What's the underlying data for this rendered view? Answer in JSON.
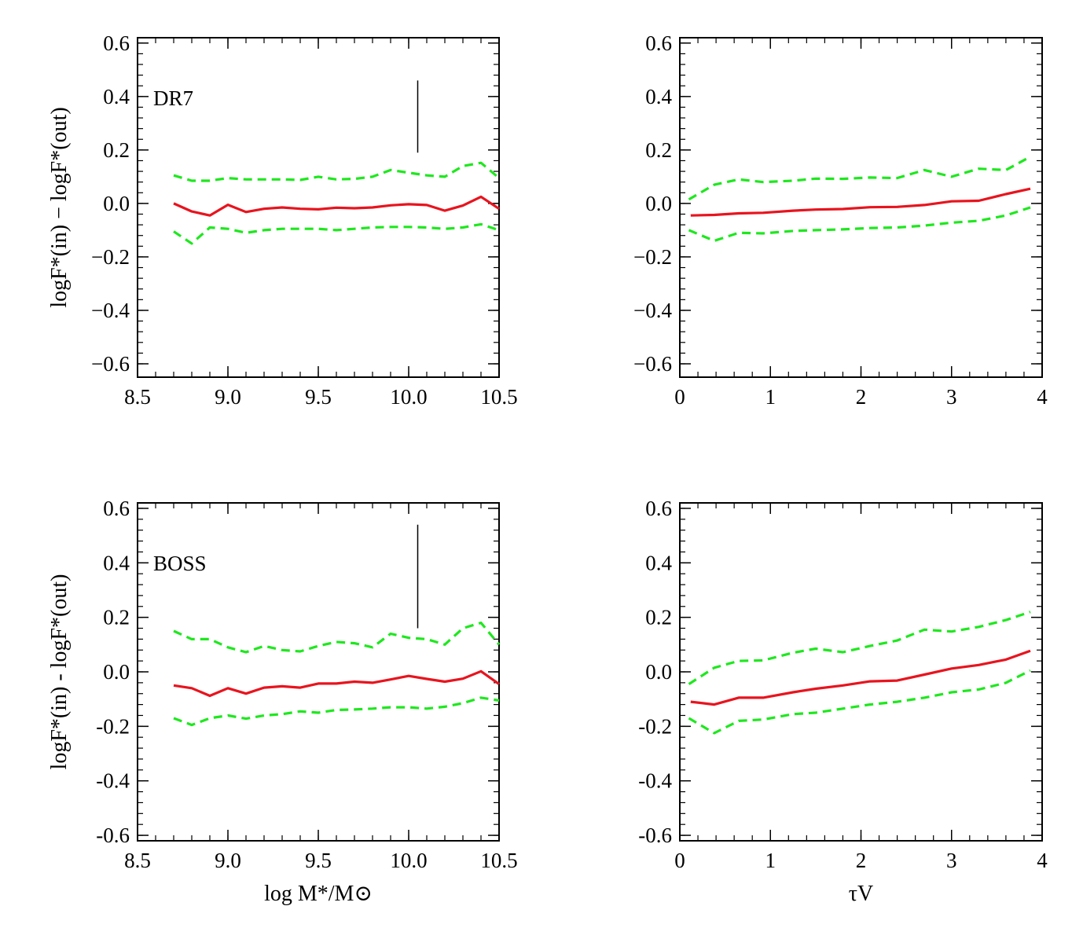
{
  "chart_data": [
    {
      "type": "line",
      "panel_label": "DR7",
      "xlabel": "",
      "ylabel": "logF*(in) − logF*(out)",
      "xlim": [
        8.5,
        10.5
      ],
      "ylim": [
        -0.65,
        0.62
      ],
      "xticks": [
        8.5,
        9.0,
        9.5,
        10.0,
        10.5
      ],
      "xtick_labels": [
        "8.5",
        "9.0",
        "9.5",
        "10.0",
        "10.5"
      ],
      "yticks": [
        -0.6,
        -0.4,
        -0.2,
        0.0,
        0.2,
        0.4,
        0.6
      ],
      "ytick_labels": [
        "−0.6",
        "−0.4",
        "−0.2",
        "0.0",
        "0.2",
        "0.4",
        "0.6"
      ],
      "vline": {
        "x": 10.05,
        "y": [
          0.19,
          0.46
        ]
      },
      "series": [
        {
          "style": "solid",
          "color": "#e8141e",
          "x": [
            8.7,
            8.8,
            8.9,
            9.0,
            9.1,
            9.2,
            9.3,
            9.4,
            9.5,
            9.6,
            9.7,
            9.8,
            9.9,
            10.0,
            10.1,
            10.2,
            10.3,
            10.4,
            10.5
          ],
          "y": [
            0.0,
            -0.03,
            -0.045,
            -0.005,
            -0.032,
            -0.02,
            -0.015,
            -0.02,
            -0.022,
            -0.016,
            -0.018,
            -0.015,
            -0.007,
            -0.003,
            -0.006,
            -0.027,
            -0.008,
            0.025,
            -0.02
          ]
        },
        {
          "style": "dashed",
          "color": "#1ee81e",
          "x": [
            8.7,
            8.8,
            8.9,
            9.0,
            9.1,
            9.2,
            9.3,
            9.4,
            9.5,
            9.6,
            9.7,
            9.8,
            9.9,
            10.0,
            10.1,
            10.2,
            10.3,
            10.4,
            10.5
          ],
          "y": [
            0.105,
            0.085,
            0.085,
            0.095,
            0.09,
            0.09,
            0.09,
            0.088,
            0.1,
            0.09,
            0.092,
            0.1,
            0.125,
            0.115,
            0.105,
            0.1,
            0.14,
            0.152,
            0.095
          ]
        },
        {
          "style": "dashed",
          "color": "#1ee81e",
          "x": [
            8.7,
            8.8,
            8.9,
            9.0,
            9.1,
            9.2,
            9.3,
            9.4,
            9.5,
            9.6,
            9.7,
            9.8,
            9.9,
            10.0,
            10.1,
            10.2,
            10.3,
            10.4,
            10.5
          ],
          "y": [
            -0.105,
            -0.15,
            -0.09,
            -0.095,
            -0.11,
            -0.1,
            -0.095,
            -0.095,
            -0.095,
            -0.1,
            -0.095,
            -0.09,
            -0.088,
            -0.088,
            -0.09,
            -0.095,
            -0.09,
            -0.078,
            -0.1
          ]
        }
      ]
    },
    {
      "type": "line",
      "panel_label": "",
      "xlabel": "",
      "ylabel": "",
      "xlim": [
        0,
        4
      ],
      "ylim": [
        -0.65,
        0.62
      ],
      "xticks": [
        0,
        1,
        2,
        3,
        4
      ],
      "xtick_labels": [
        "0",
        "1",
        "2",
        "3",
        "4"
      ],
      "yticks": [
        -0.6,
        -0.4,
        -0.2,
        0.0,
        0.2,
        0.4,
        0.6
      ],
      "ytick_labels": [
        "−0.6",
        "−0.4",
        "−0.2",
        "0.0",
        "0.2",
        "0.4",
        "0.6"
      ],
      "series": [
        {
          "style": "solid",
          "color": "#e8141e",
          "x": [
            0.12,
            0.38,
            0.65,
            0.92,
            1.25,
            1.5,
            1.8,
            2.1,
            2.4,
            2.7,
            3.0,
            3.3,
            3.6,
            3.87
          ],
          "y": [
            -0.045,
            -0.043,
            -0.037,
            -0.035,
            -0.027,
            -0.023,
            -0.021,
            -0.014,
            -0.013,
            -0.006,
            0.008,
            0.01,
            0.035,
            0.055
          ]
        },
        {
          "style": "dashed",
          "color": "#1ee81e",
          "x": [
            0.1,
            0.38,
            0.65,
            0.92,
            1.25,
            1.5,
            1.8,
            2.1,
            2.4,
            2.7,
            3.0,
            3.3,
            3.6,
            3.87
          ],
          "y": [
            0.015,
            0.07,
            0.09,
            0.08,
            0.085,
            0.093,
            0.092,
            0.097,
            0.095,
            0.125,
            0.1,
            0.13,
            0.125,
            0.175
          ]
        },
        {
          "style": "dashed",
          "color": "#1ee81e",
          "x": [
            0.1,
            0.38,
            0.65,
            0.92,
            1.25,
            1.5,
            1.8,
            2.1,
            2.4,
            2.7,
            3.0,
            3.3,
            3.6,
            3.87
          ],
          "y": [
            -0.1,
            -0.14,
            -0.11,
            -0.112,
            -0.103,
            -0.1,
            -0.097,
            -0.092,
            -0.09,
            -0.083,
            -0.072,
            -0.065,
            -0.045,
            -0.015
          ]
        }
      ]
    },
    {
      "type": "line",
      "panel_label": "BOSS",
      "xlabel": "log M*/M⊙",
      "ylabel": "logF*(in) - logF*(out)",
      "xlim": [
        8.5,
        10.5
      ],
      "ylim": [
        -0.62,
        0.62
      ],
      "xticks": [
        8.5,
        9.0,
        9.5,
        10.0,
        10.5
      ],
      "xtick_labels": [
        "8.5",
        "9.0",
        "9.5",
        "10.0",
        "10.5"
      ],
      "yticks": [
        -0.6,
        -0.4,
        -0.2,
        0.0,
        0.2,
        0.4,
        0.6
      ],
      "ytick_labels": [
        "-0.6",
        "-0.4",
        "-0.2",
        "0.0",
        "0.2",
        "0.4",
        "0.6"
      ],
      "vline": {
        "x": 10.05,
        "y": [
          0.16,
          0.54
        ]
      },
      "series": [
        {
          "style": "solid",
          "color": "#e8141e",
          "x": [
            8.7,
            8.8,
            8.9,
            9.0,
            9.1,
            9.2,
            9.3,
            9.4,
            9.5,
            9.6,
            9.7,
            9.8,
            9.9,
            10.0,
            10.1,
            10.2,
            10.3,
            10.4,
            10.5
          ],
          "y": [
            -0.05,
            -0.06,
            -0.088,
            -0.06,
            -0.08,
            -0.058,
            -0.053,
            -0.058,
            -0.043,
            -0.043,
            -0.036,
            -0.04,
            -0.028,
            -0.015,
            -0.026,
            -0.036,
            -0.025,
            0.002,
            -0.045
          ]
        },
        {
          "style": "dashed",
          "color": "#1ee81e",
          "x": [
            8.7,
            8.8,
            8.9,
            9.0,
            9.1,
            9.2,
            9.3,
            9.4,
            9.5,
            9.6,
            9.7,
            9.8,
            9.9,
            10.0,
            10.1,
            10.2,
            10.3,
            10.4,
            10.5
          ],
          "y": [
            0.15,
            0.12,
            0.12,
            0.09,
            0.072,
            0.095,
            0.08,
            0.075,
            0.095,
            0.11,
            0.105,
            0.09,
            0.14,
            0.125,
            0.12,
            0.1,
            0.16,
            0.18,
            0.1
          ]
        },
        {
          "style": "dashed",
          "color": "#1ee81e",
          "x": [
            8.7,
            8.8,
            8.9,
            9.0,
            9.1,
            9.2,
            9.3,
            9.4,
            9.5,
            9.6,
            9.7,
            9.8,
            9.9,
            10.0,
            10.1,
            10.2,
            10.3,
            10.4,
            10.5
          ],
          "y": [
            -0.17,
            -0.195,
            -0.17,
            -0.16,
            -0.172,
            -0.16,
            -0.155,
            -0.145,
            -0.15,
            -0.14,
            -0.138,
            -0.135,
            -0.13,
            -0.13,
            -0.135,
            -0.128,
            -0.115,
            -0.095,
            -0.105
          ]
        }
      ]
    },
    {
      "type": "line",
      "panel_label": "",
      "xlabel": "τV",
      "ylabel": "",
      "xlim": [
        0,
        4
      ],
      "ylim": [
        -0.62,
        0.62
      ],
      "xticks": [
        0,
        1,
        2,
        3,
        4
      ],
      "xtick_labels": [
        "0",
        "1",
        "2",
        "3",
        "4"
      ],
      "yticks": [
        -0.6,
        -0.4,
        -0.2,
        0.0,
        0.2,
        0.4,
        0.6
      ],
      "ytick_labels": [
        "-0.6",
        "-0.4",
        "-0.2",
        "0.0",
        "0.2",
        "0.4",
        "0.6"
      ],
      "series": [
        {
          "style": "solid",
          "color": "#e8141e",
          "x": [
            0.12,
            0.38,
            0.65,
            0.92,
            1.25,
            1.5,
            1.8,
            2.1,
            2.4,
            2.7,
            3.0,
            3.3,
            3.6,
            3.87
          ],
          "y": [
            -0.11,
            -0.12,
            -0.095,
            -0.095,
            -0.075,
            -0.062,
            -0.05,
            -0.035,
            -0.032,
            -0.01,
            0.012,
            0.025,
            0.045,
            0.077
          ]
        },
        {
          "style": "dashed",
          "color": "#1ee81e",
          "x": [
            0.1,
            0.38,
            0.65,
            0.92,
            1.25,
            1.5,
            1.8,
            2.1,
            2.4,
            2.7,
            3.0,
            3.3,
            3.6,
            3.87
          ],
          "y": [
            -0.045,
            0.015,
            0.04,
            0.042,
            0.07,
            0.085,
            0.072,
            0.095,
            0.115,
            0.155,
            0.148,
            0.165,
            0.19,
            0.22
          ]
        },
        {
          "style": "dashed",
          "color": "#1ee81e",
          "x": [
            0.1,
            0.38,
            0.65,
            0.92,
            1.25,
            1.5,
            1.8,
            2.1,
            2.4,
            2.7,
            3.0,
            3.3,
            3.6,
            3.87
          ],
          "y": [
            -0.17,
            -0.225,
            -0.18,
            -0.175,
            -0.155,
            -0.15,
            -0.135,
            -0.12,
            -0.11,
            -0.095,
            -0.075,
            -0.065,
            -0.04,
            0.005
          ]
        }
      ]
    }
  ]
}
